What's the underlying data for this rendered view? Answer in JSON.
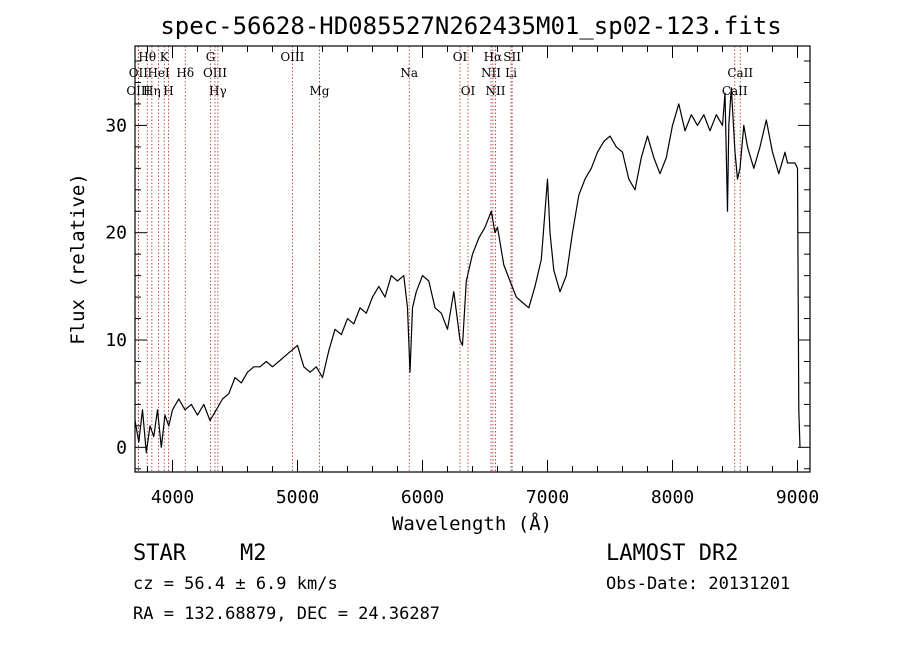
{
  "chart_data": {
    "type": "line",
    "title": "spec-56628-HD085527N262435M01_sp02-123.fits",
    "xlabel": "Wavelength (Å)",
    "ylabel": "Flux (relative)",
    "xlim": [
      3700,
      9100
    ],
    "ylim": [
      -2.3,
      37.4
    ],
    "xticks": [
      4000,
      5000,
      6000,
      7000,
      8000,
      9000
    ],
    "yticks": [
      0,
      10,
      20,
      30
    ],
    "grid": false,
    "series": [
      {
        "x": [
          3700,
          3730,
          3760,
          3790,
          3820,
          3850,
          3880,
          3910,
          3940,
          3970,
          4000,
          4050,
          4100,
          4150,
          4200,
          4250,
          4300,
          4350,
          4400,
          4450,
          4500,
          4550,
          4600,
          4650,
          4700,
          4750,
          4800,
          4850,
          4900,
          4950,
          5000,
          5050,
          5100,
          5150,
          5200,
          5250,
          5300,
          5350,
          5400,
          5450,
          5500,
          5550,
          5600,
          5650,
          5700,
          5750,
          5800,
          5850,
          5880,
          5900,
          5920,
          5950,
          6000,
          6050,
          6100,
          6150,
          6200,
          6250,
          6300,
          6320,
          6350,
          6400,
          6450,
          6500,
          6550,
          6580,
          6600,
          6650,
          6700,
          6750,
          6800,
          6850,
          6900,
          6950,
          7000,
          7020,
          7050,
          7100,
          7150,
          7200,
          7250,
          7300,
          7350,
          7400,
          7450,
          7500,
          7550,
          7600,
          7650,
          7700,
          7750,
          7800,
          7850,
          7900,
          7950,
          8000,
          8050,
          8100,
          8150,
          8200,
          8250,
          8300,
          8350,
          8400,
          8420,
          8440,
          8450,
          8470,
          8500,
          8520,
          8540,
          8570,
          8600,
          8650,
          8700,
          8750,
          8800,
          8850,
          8900,
          8920,
          8950,
          8980,
          9000,
          9010,
          9020
        ],
        "values": [
          2.5,
          0.5,
          3.5,
          -0.5,
          2.0,
          1.0,
          3.5,
          0.0,
          3.0,
          2.0,
          3.5,
          4.5,
          3.5,
          4.0,
          3.0,
          4.0,
          2.5,
          3.5,
          4.5,
          5.0,
          6.5,
          6.0,
          7.0,
          7.5,
          7.5,
          8.0,
          7.5,
          8.0,
          8.5,
          9.0,
          9.5,
          7.5,
          7.0,
          7.5,
          6.5,
          9.0,
          11.0,
          10.5,
          12.0,
          11.5,
          13.0,
          12.5,
          14.0,
          15.0,
          14.0,
          16.0,
          15.5,
          16.0,
          13.0,
          7.0,
          13.0,
          14.5,
          16.0,
          15.5,
          13.0,
          12.5,
          11.0,
          14.5,
          10.0,
          9.5,
          15.5,
          18.0,
          19.5,
          20.5,
          22.0,
          20.0,
          20.5,
          17.0,
          15.5,
          14.0,
          13.5,
          13.0,
          15.0,
          17.5,
          25.0,
          20.0,
          16.5,
          14.5,
          16.0,
          20.0,
          23.5,
          25.0,
          26.0,
          27.5,
          28.5,
          29.0,
          28.0,
          27.5,
          25.0,
          24.0,
          27.0,
          29.0,
          27.0,
          25.5,
          27.0,
          30.0,
          32.0,
          29.5,
          31.0,
          30.0,
          31.0,
          29.5,
          31.0,
          30.0,
          33.0,
          22.0,
          30.0,
          33.5,
          27.5,
          25.0,
          26.0,
          30.0,
          28.0,
          26.0,
          28.0,
          30.5,
          27.5,
          25.5,
          27.5,
          26.5,
          26.5,
          26.5,
          26.0,
          3.5,
          0.0
        ]
      }
    ],
    "lines": [
      {
        "label": "Hθ",
        "x": 3798,
        "row": 1
      },
      {
        "label": "OII",
        "x": 3727,
        "row": 2
      },
      {
        "label": "OIII",
        "x": 3727,
        "row": 3
      },
      {
        "label": "HeI",
        "x": 3889,
        "row": 2
      },
      {
        "label": "Hη",
        "x": 3835,
        "row": 3
      },
      {
        "label": "K",
        "x": 3934,
        "row": 1
      },
      {
        "label": "H",
        "x": 3968,
        "row": 3
      },
      {
        "label": "Hδ",
        "x": 4102,
        "row": 2
      },
      {
        "label": "G",
        "x": 4304,
        "row": 1
      },
      {
        "label": "OIII",
        "x": 4340,
        "row": 2
      },
      {
        "label": "Hγ",
        "x": 4363,
        "row": 3
      },
      {
        "label": "OIII",
        "x": 4959,
        "row": 1
      },
      {
        "label": "Mg",
        "x": 5176,
        "row": 3
      },
      {
        "label": "Na",
        "x": 5894,
        "row": 2
      },
      {
        "label": "OI",
        "x": 6300,
        "row": 1
      },
      {
        "label": "OI",
        "x": 6364,
        "row": 3
      },
      {
        "label": "Hα",
        "x": 6563,
        "row": 1
      },
      {
        "label": "NII",
        "x": 6548,
        "row": 2
      },
      {
        "label": "NII",
        "x": 6584,
        "row": 3
      },
      {
        "label": "SII",
        "x": 6717,
        "row": 1
      },
      {
        "label": "Li",
        "x": 6708,
        "row": 2
      },
      {
        "label": "CaII",
        "x": 8542,
        "row": 2
      },
      {
        "label": "CaII",
        "x": 8498,
        "row": 3
      }
    ],
    "line_color": "#000000",
    "marker_color": "#b22222"
  },
  "info": {
    "class_label": "STAR",
    "subclass": "M2",
    "survey": "LAMOST DR2",
    "cz": "cz = 56.4 ± 6.9 km/s",
    "obs_date": "Obs-Date: 20131201",
    "radec": "RA = 132.68879, DEC =  24.36287"
  }
}
